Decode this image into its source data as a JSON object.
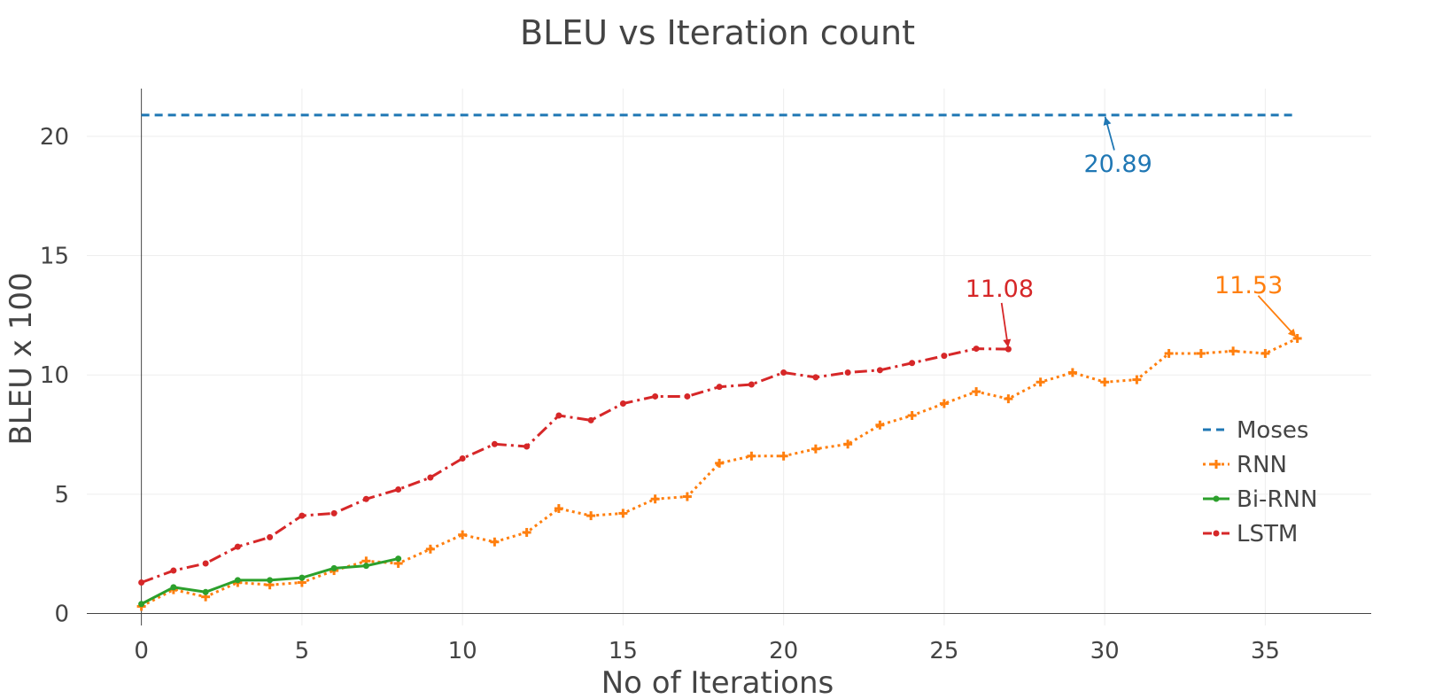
{
  "chart_data": {
    "type": "line",
    "title": "BLEU vs Iteration count",
    "xlabel": "No of Iterations",
    "ylabel": "BLEU x 100",
    "xlim": [
      -1.7,
      38.3
    ],
    "ylim": [
      -0.5,
      22
    ],
    "xticks": [
      0,
      5,
      10,
      15,
      20,
      25,
      30,
      35
    ],
    "yticks": [
      0,
      5,
      10,
      15,
      20
    ],
    "grid": true,
    "legend_position": "right",
    "series": [
      {
        "name": "Moses",
        "color": "#1f77b4",
        "style": "dash",
        "marker": "none",
        "x": [
          0,
          36
        ],
        "y": [
          20.89,
          20.89
        ]
      },
      {
        "name": "RNN",
        "color": "#ff7f0e",
        "style": "dot",
        "marker": "cross",
        "x": [
          0,
          1,
          2,
          3,
          4,
          5,
          6,
          7,
          8,
          9,
          10,
          11,
          12,
          13,
          14,
          15,
          16,
          17,
          18,
          19,
          20,
          21,
          22,
          23,
          24,
          25,
          26,
          27,
          28,
          29,
          30,
          31,
          32,
          33,
          34,
          35,
          36
        ],
        "y": [
          0.3,
          1.0,
          0.7,
          1.3,
          1.2,
          1.3,
          1.8,
          2.2,
          2.1,
          2.7,
          3.3,
          3.0,
          3.4,
          4.4,
          4.1,
          4.2,
          4.8,
          4.9,
          6.3,
          6.6,
          6.6,
          6.9,
          7.1,
          7.9,
          8.3,
          8.8,
          9.3,
          9.0,
          9.7,
          10.1,
          9.7,
          9.8,
          10.9,
          10.9,
          11.0,
          10.9,
          11.53
        ]
      },
      {
        "name": "Bi-RNN",
        "color": "#2ca02c",
        "style": "solid",
        "marker": "dot",
        "x": [
          0,
          1,
          2,
          3,
          4,
          5,
          6,
          7,
          8
        ],
        "y": [
          0.4,
          1.1,
          0.9,
          1.4,
          1.4,
          1.5,
          1.9,
          2.0,
          2.3
        ]
      },
      {
        "name": "LSTM",
        "color": "#d62728",
        "style": "dashdot",
        "marker": "dot",
        "x": [
          0,
          1,
          2,
          3,
          4,
          5,
          6,
          7,
          8,
          9,
          10,
          11,
          12,
          13,
          14,
          15,
          16,
          17,
          18,
          19,
          20,
          21,
          22,
          23,
          24,
          25,
          26,
          27
        ],
        "y": [
          1.3,
          1.8,
          2.1,
          2.8,
          3.2,
          4.1,
          4.2,
          4.8,
          5.2,
          5.7,
          6.5,
          7.1,
          7.0,
          8.3,
          8.1,
          8.8,
          9.1,
          9.1,
          9.5,
          9.6,
          10.1,
          9.9,
          10.1,
          10.2,
          10.5,
          10.8,
          11.1,
          11.08
        ]
      }
    ],
    "annotations": [
      {
        "text": "20.89",
        "x": 30,
        "y": 20.89,
        "color": "#1f77b4",
        "ax": 15,
        "ay": 55
      },
      {
        "text": "11.08",
        "x": 27,
        "y": 11.08,
        "color": "#d62728",
        "ax": -10,
        "ay": -68
      },
      {
        "text": "11.53",
        "x": 36,
        "y": 11.53,
        "color": "#ff7f0e",
        "ax": -55,
        "ay": -60
      }
    ]
  }
}
